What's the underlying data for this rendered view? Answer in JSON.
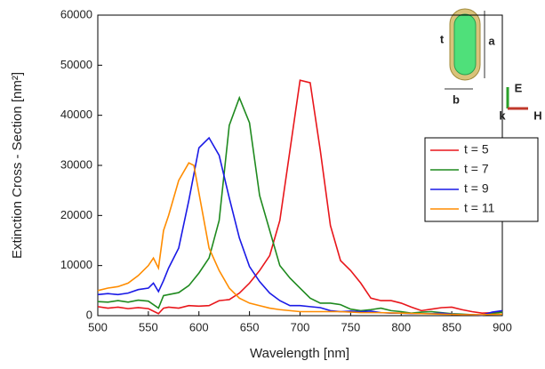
{
  "chart_data": {
    "type": "line",
    "xlabel": "Wavelength [nm]",
    "ylabel": "Extinction Cross - Section [nm²]",
    "xlim": [
      500,
      900
    ],
    "xticks": [
      500,
      550,
      600,
      650,
      700,
      750,
      800,
      850,
      900
    ],
    "ylim": [
      0,
      60000
    ],
    "yticks": [
      0,
      10000,
      20000,
      30000,
      40000,
      50000,
      60000
    ],
    "legend": "right",
    "annotations": [
      "t",
      "a",
      "b",
      "E",
      "k",
      "H"
    ],
    "series": [
      {
        "name": "t = 5",
        "color": "#e8161b",
        "x": [
          500,
          510,
          520,
          530,
          540,
          550,
          560,
          565,
          570,
          580,
          590,
          600,
          610,
          620,
          630,
          640,
          650,
          660,
          670,
          680,
          690,
          700,
          710,
          720,
          730,
          740,
          750,
          760,
          770,
          780,
          790,
          800,
          810,
          820,
          830,
          840,
          850,
          860,
          870,
          880,
          890,
          900
        ],
        "values": [
          1800,
          1500,
          1700,
          1400,
          1600,
          1400,
          400,
          1500,
          1700,
          1500,
          2000,
          1900,
          2000,
          3000,
          3200,
          4500,
          6500,
          9000,
          12000,
          19000,
          33000,
          47000,
          46500,
          33000,
          18000,
          11000,
          9000,
          6500,
          3500,
          3000,
          3000,
          2500,
          1700,
          1000,
          1300,
          1600,
          1700,
          1200,
          800,
          500,
          600,
          900
        ]
      },
      {
        "name": "t = 7",
        "color": "#1f8a1f",
        "x": [
          500,
          510,
          520,
          530,
          540,
          550,
          560,
          565,
          570,
          580,
          590,
          600,
          610,
          620,
          630,
          640,
          650,
          660,
          670,
          680,
          690,
          700,
          710,
          720,
          730,
          740,
          750,
          760,
          770,
          780,
          790,
          800,
          810,
          820,
          830,
          840,
          850,
          860,
          870,
          880,
          890,
          900
        ],
        "values": [
          2800,
          2700,
          3000,
          2700,
          3100,
          2900,
          1500,
          4000,
          4200,
          4600,
          6000,
          8500,
          11500,
          19000,
          38000,
          43500,
          38500,
          24000,
          17000,
          10000,
          7500,
          5500,
          3500,
          2500,
          2500,
          2200,
          1300,
          1000,
          1200,
          1500,
          1000,
          800,
          500,
          700,
          800,
          600,
          400,
          300,
          200,
          100,
          400,
          700
        ]
      },
      {
        "name": "t = 9",
        "color": "#1a1ae6",
        "x": [
          500,
          510,
          520,
          530,
          540,
          550,
          555,
          560,
          565,
          570,
          580,
          590,
          600,
          610,
          620,
          630,
          640,
          650,
          660,
          670,
          680,
          690,
          700,
          710,
          720,
          730,
          740,
          750,
          760,
          770,
          780,
          790,
          800,
          810,
          820,
          830,
          840,
          850,
          860,
          870,
          880,
          890,
          900
        ],
        "values": [
          4200,
          4400,
          4200,
          4500,
          5200,
          5500,
          6500,
          4800,
          7000,
          9500,
          13500,
          23000,
          33500,
          35500,
          32000,
          23500,
          15500,
          9800,
          6800,
          4500,
          3000,
          2000,
          2000,
          1800,
          1600,
          1000,
          800,
          900,
          800,
          900,
          600,
          500,
          500,
          400,
          400,
          400,
          500,
          300,
          200,
          200,
          100,
          700,
          1000
        ]
      },
      {
        "name": "t = 11",
        "color": "#ff8c00",
        "x": [
          500,
          510,
          520,
          530,
          540,
          550,
          555,
          560,
          565,
          570,
          580,
          590,
          595,
          600,
          610,
          620,
          630,
          640,
          650,
          660,
          670,
          680,
          690,
          700,
          720,
          740,
          760,
          780,
          800,
          820,
          840,
          860,
          880,
          900
        ],
        "values": [
          5000,
          5500,
          5800,
          6500,
          8000,
          10000,
          11500,
          9500,
          17000,
          20000,
          27000,
          30500,
          30000,
          24500,
          13500,
          9000,
          5500,
          3500,
          2500,
          2000,
          1500,
          1200,
          1000,
          800,
          800,
          800,
          600,
          600,
          500,
          400,
          300,
          200,
          200,
          300
        ]
      }
    ]
  }
}
